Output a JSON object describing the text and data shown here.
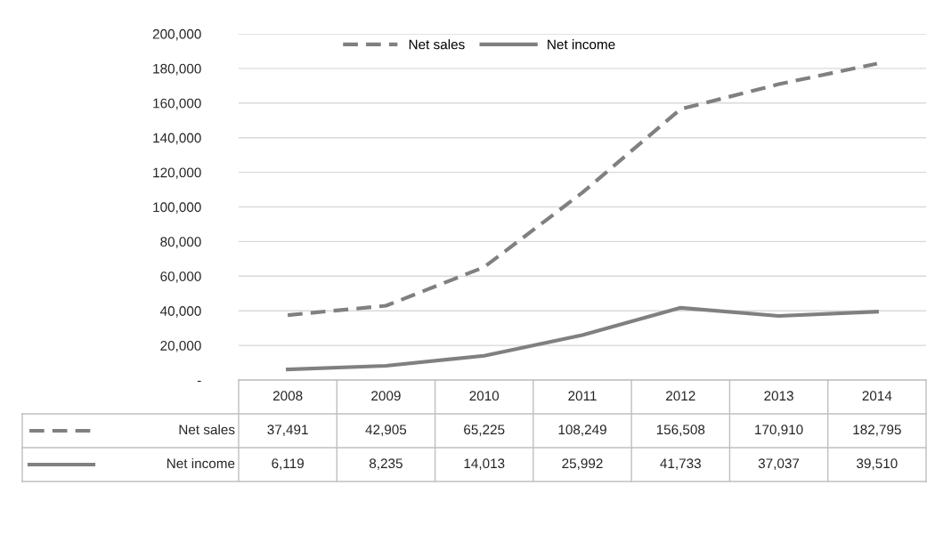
{
  "chart_data": {
    "type": "line",
    "categories": [
      "2008",
      "2009",
      "2010",
      "2011",
      "2012",
      "2013",
      "2014"
    ],
    "series": [
      {
        "name": "Net sales",
        "color": "#808080",
        "line_style": "dashed",
        "values": [
          37491,
          42905,
          65225,
          108249,
          156508,
          170910,
          182795
        ],
        "value_labels": [
          "37,491",
          "42,905",
          "65,225",
          "108,249",
          "156,508",
          "170,910",
          "182,795"
        ]
      },
      {
        "name": "Net income",
        "color": "#808080",
        "line_style": "solid",
        "values": [
          6119,
          8235,
          14013,
          25992,
          41733,
          37037,
          39510
        ],
        "value_labels": [
          "6,119",
          "8,235",
          "14,013",
          "25,992",
          "41,733",
          "37,037",
          "39,510"
        ]
      }
    ],
    "ylim": [
      0,
      200000
    ],
    "yticks": [
      {
        "value": 0,
        "label": "-"
      },
      {
        "value": 20000,
        "label": "20,000"
      },
      {
        "value": 40000,
        "label": "40,000"
      },
      {
        "value": 60000,
        "label": "60,000"
      },
      {
        "value": 80000,
        "label": "80,000"
      },
      {
        "value": 100000,
        "label": "100,000"
      },
      {
        "value": 120000,
        "label": "120,000"
      },
      {
        "value": 140000,
        "label": "140,000"
      },
      {
        "value": 160000,
        "label": "160,000"
      },
      {
        "value": 180000,
        "label": "180,000"
      },
      {
        "value": 200000,
        "label": "200,000"
      }
    ],
    "grid": "y",
    "legend": "top",
    "marker": "none"
  }
}
